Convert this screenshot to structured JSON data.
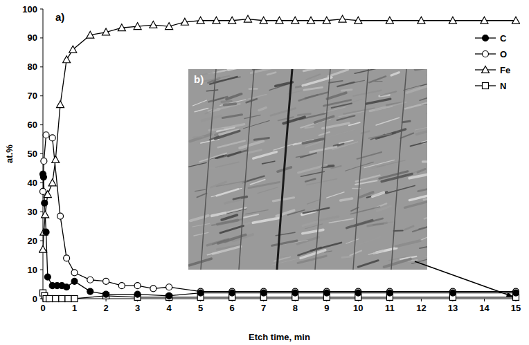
{
  "chart_data": {
    "type": "line",
    "x_label": "Etch time, min",
    "y_label": "at.%",
    "annotations": [
      "a)",
      "b)"
    ],
    "xlim": [
      0,
      15
    ],
    "xticks": [
      0,
      1,
      2,
      3,
      4,
      5,
      6,
      7,
      8,
      9,
      10,
      11,
      12,
      13,
      14,
      15
    ],
    "ylim": [
      0,
      100
    ],
    "yticks": [
      0,
      10,
      20,
      30,
      40,
      50,
      60,
      70,
      80,
      90,
      100
    ],
    "grid": false,
    "legend": "upper right",
    "series": [
      {
        "name": "C",
        "color": "#000000",
        "marker": "filled-circle",
        "line_style": "solid",
        "x": [
          0,
          0.02,
          0.05,
          0.1,
          0.15,
          0.3,
          0.45,
          0.6,
          0.75,
          1,
          1.5,
          2,
          3,
          4,
          5,
          6,
          7,
          8,
          9,
          10,
          11,
          13,
          15
        ],
        "values": [
          43,
          42,
          33,
          23,
          7.5,
          4.5,
          4.5,
          4.5,
          4,
          6,
          2.5,
          1.5,
          1.5,
          1,
          2,
          2,
          2,
          2,
          2,
          2,
          2,
          2,
          2
        ]
      },
      {
        "name": "O",
        "color": "#000000",
        "marker": "open-circle",
        "line_style": "solid",
        "x": [
          0,
          0.03,
          0.1,
          0.3,
          0.55,
          0.75,
          1,
          1.5,
          2,
          2.5,
          3,
          3.5,
          4,
          5,
          6,
          7,
          8,
          9,
          10,
          11,
          13,
          15
        ],
        "values": [
          37,
          47.5,
          56.5,
          55.5,
          28.5,
          14,
          9,
          6.5,
          6,
          4.5,
          4.5,
          3.5,
          4,
          2.5,
          2.5,
          2.5,
          2.5,
          2.5,
          2.5,
          2.5,
          2.5,
          2.5
        ]
      },
      {
        "name": "Fe",
        "color": "#000000",
        "marker": "open-triangle",
        "line_style": "solid",
        "x": [
          0,
          0.03,
          0.07,
          0.15,
          0.3,
          0.4,
          0.55,
          0.75,
          0.95,
          1.5,
          2,
          2.5,
          3,
          3.5,
          4,
          4.5,
          5,
          5.5,
          6,
          6.5,
          7,
          7.5,
          8,
          8.5,
          9,
          9.5,
          10,
          11,
          12,
          13,
          14,
          15
        ],
        "values": [
          17,
          23,
          29,
          36,
          40,
          48,
          67,
          82.5,
          86,
          91,
          92,
          93.5,
          94,
          94.5,
          94,
          95.5,
          96,
          96,
          96,
          96.5,
          96,
          96,
          96,
          96,
          96,
          96.5,
          96,
          96,
          96,
          96,
          96,
          96
        ]
      },
      {
        "name": "N",
        "color": "#000000",
        "marker": "open-square",
        "line_style": "solid",
        "x": [
          0,
          0.05,
          0.1,
          0.2,
          0.4,
          0.6,
          0.8,
          1,
          2,
          3,
          4,
          5,
          6,
          7,
          8,
          9,
          10,
          11,
          13,
          15
        ],
        "values": [
          2,
          1,
          0,
          0,
          0,
          0,
          0,
          0,
          1,
          0.5,
          0.5,
          0.5,
          0.5,
          0.5,
          0.5,
          0.5,
          0.5,
          0.5,
          0.5,
          0.5
        ]
      }
    ]
  }
}
